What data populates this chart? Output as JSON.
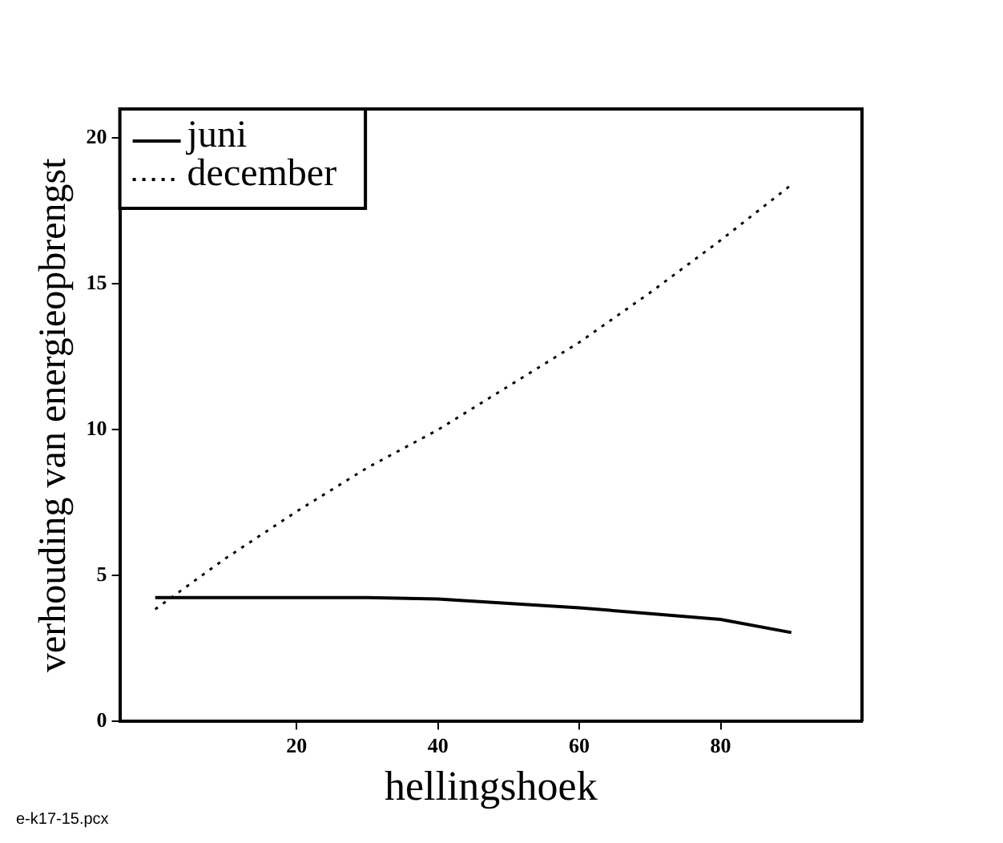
{
  "chart_data": {
    "type": "line",
    "xlabel": "hellingshoek",
    "ylabel": "verhouding van energieopbrengst",
    "x": [
      0,
      10,
      20,
      30,
      40,
      50,
      60,
      70,
      80,
      90
    ],
    "series": [
      {
        "name": "juni",
        "color": "#000000",
        "line_style": "solid",
        "values": [
          4.25,
          4.25,
          4.25,
          4.25,
          4.2,
          4.05,
          3.9,
          3.7,
          3.5,
          3.05
        ]
      },
      {
        "name": "december",
        "color": "#000000",
        "line_style": "dotted",
        "values": [
          3.85,
          5.6,
          7.2,
          8.7,
          10.0,
          11.5,
          13.0,
          14.7,
          16.5,
          18.4
        ]
      }
    ],
    "xlim": [
      -5,
      100
    ],
    "xticks": [
      20,
      40,
      60,
      80
    ],
    "ylim": [
      0,
      21
    ],
    "yticks": [
      0,
      5,
      10,
      15,
      20
    ],
    "grid": false,
    "legend": "top left",
    "marker": "none",
    "annotations": [
      "e-k17-15.pcx"
    ]
  }
}
